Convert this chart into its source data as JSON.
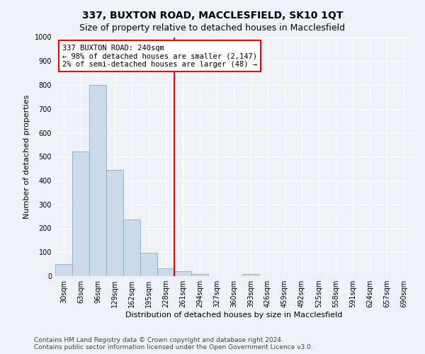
{
  "title": "337, BUXTON ROAD, MACCLESFIELD, SK10 1QT",
  "subtitle": "Size of property relative to detached houses in Macclesfield",
  "xlabel": "Distribution of detached houses by size in Macclesfield",
  "ylabel": "Number of detached properties",
  "footer_line1": "Contains HM Land Registry data © Crown copyright and database right 2024.",
  "footer_line2": "Contains public sector information licensed under the Open Government Licence v3.0.",
  "bin_labels": [
    "30sqm",
    "63sqm",
    "96sqm",
    "129sqm",
    "162sqm",
    "195sqm",
    "228sqm",
    "261sqm",
    "294sqm",
    "327sqm",
    "360sqm",
    "393sqm",
    "426sqm",
    "459sqm",
    "492sqm",
    "525sqm",
    "558sqm",
    "591sqm",
    "624sqm",
    "657sqm",
    "690sqm"
  ],
  "bin_values": [
    50,
    522,
    800,
    445,
    238,
    98,
    32,
    20,
    10,
    0,
    0,
    10,
    0,
    0,
    0,
    0,
    0,
    0,
    0,
    0,
    0
  ],
  "bar_color": "#ccd9e8",
  "bar_edge_color": "#8aacc8",
  "property_line_color": "red",
  "annotation_line1": "337 BUXTON ROAD: 240sqm",
  "annotation_line2": "← 98% of detached houses are smaller (2,147)",
  "annotation_line3": "2% of semi-detached houses are larger (48) →",
  "annotation_box_color": "white",
  "annotation_box_edge_color": "red",
  "ylim": [
    0,
    1000
  ],
  "yticks": [
    0,
    100,
    200,
    300,
    400,
    500,
    600,
    700,
    800,
    900,
    1000
  ],
  "bg_color": "#eef2f7",
  "plot_bg_color": "#eef2f7",
  "grid_color": "white",
  "title_fontsize": 10,
  "subtitle_fontsize": 9,
  "axis_label_fontsize": 8,
  "tick_fontsize": 7,
  "annotation_fontsize": 7.5,
  "footer_fontsize": 6.5
}
